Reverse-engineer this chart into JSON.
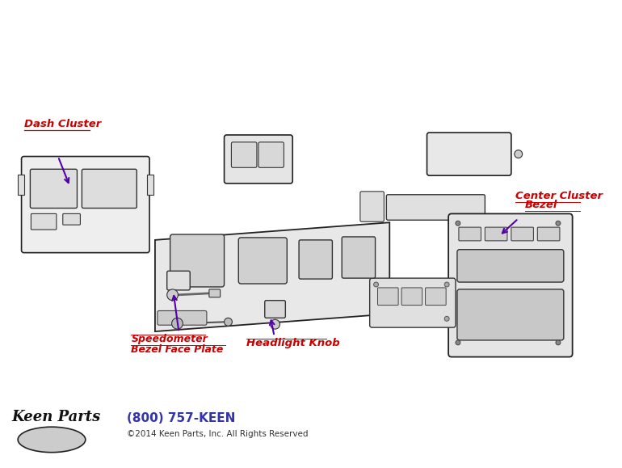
{
  "bg_color": "#ffffff",
  "fig_width": 7.7,
  "fig_height": 5.79,
  "labels": {
    "dash_cluster": "Dash Cluster",
    "speedometer_line1": "Speedometer",
    "speedometer_line2": "Bezel Face Plate",
    "headlight_knob": "Headlight Knob",
    "center_cluster_line1": "Center Cluster",
    "center_cluster_line2": "Bezel"
  },
  "label_color": "#cc0000",
  "arrow_color": "#5500aa",
  "footer_phone": "(800) 757-KEEN",
  "footer_phone_color": "#3333aa",
  "footer_copy": "©2014 Keen Parts, Inc. All Rights Reserved",
  "footer_copy_color": "#333333"
}
